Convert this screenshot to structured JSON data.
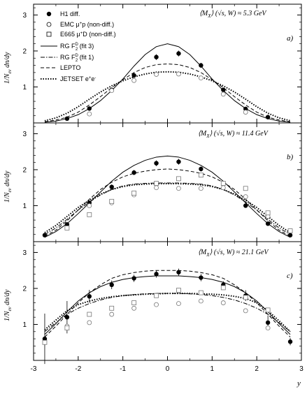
{
  "chart_data": [
    {
      "type": "scatter",
      "panel_label": "a)",
      "energy_label": "⟨M",
      "energy_sub": "X",
      "energy_tail": "⟩ (√s, W) ≈ 5.3 GeV",
      "ylabel": "1/N",
      "ylabel_sub": "ev",
      "ylabel_tail": " dn/dy",
      "xlim": [
        -3,
        3
      ],
      "ylim": [
        0,
        3.3
      ],
      "yticks": [
        1,
        2,
        3
      ],
      "series": [
        {
          "name": "H1 diff.",
          "marker": "filled-circle",
          "x": [
            -2.25,
            -1.75,
            -1.25,
            -0.75,
            -0.25,
            0.25,
            0.75,
            1.25,
            1.75,
            2.25
          ],
          "y": [
            0.12,
            0.4,
            0.92,
            1.32,
            1.83,
            1.93,
            1.6,
            0.92,
            0.39,
            0.16
          ],
          "err": [
            0.03,
            0.05,
            0.06,
            0.07,
            0.08,
            0.08,
            0.07,
            0.06,
            0.05,
            0.03
          ]
        },
        {
          "name": "EMC μ+p (non-diff.)",
          "marker": "open-circle",
          "x": [
            -1.75,
            -1.25,
            -0.75,
            -0.25,
            0.25,
            0.75,
            1.25,
            1.75
          ],
          "y": [
            0.25,
            0.9,
            1.18,
            1.35,
            1.36,
            1.25,
            0.8,
            0.3
          ],
          "err": [
            0,
            0,
            0,
            0,
            0,
            0,
            0,
            0
          ]
        },
        {
          "name": "RG F2D (fit 3)",
          "line": "solid",
          "x": [
            -2.75,
            -2.5,
            -2.25,
            -2.0,
            -1.75,
            -1.5,
            -1.25,
            -1.0,
            -0.75,
            -0.5,
            -0.25,
            0,
            0.25,
            0.5,
            0.75,
            1.0,
            1.25,
            1.5,
            1.75,
            2.0,
            2.25,
            2.5,
            2.75
          ],
          "y": [
            0.02,
            0.05,
            0.12,
            0.23,
            0.4,
            0.62,
            0.9,
            1.22,
            1.58,
            1.9,
            2.12,
            2.2,
            2.12,
            1.9,
            1.58,
            1.22,
            0.9,
            0.62,
            0.4,
            0.23,
            0.12,
            0.05,
            0.02
          ]
        },
        {
          "name": "LEPTO",
          "line": "dashed",
          "x": [
            -2.75,
            -2.5,
            -2.25,
            -2.0,
            -1.75,
            -1.5,
            -1.25,
            -1.0,
            -0.75,
            -0.5,
            -0.25,
            0,
            0.25,
            0.5,
            0.75,
            1.0,
            1.25,
            1.5,
            1.75,
            2.0,
            2.25,
            2.5,
            2.75
          ],
          "y": [
            0.03,
            0.08,
            0.16,
            0.3,
            0.5,
            0.73,
            0.98,
            1.2,
            1.4,
            1.54,
            1.62,
            1.64,
            1.62,
            1.54,
            1.4,
            1.2,
            0.98,
            0.73,
            0.5,
            0.3,
            0.16,
            0.08,
            0.03
          ]
        },
        {
          "name": "JETSET e+e-",
          "line": "dotted",
          "x": [
            -2.75,
            -2.5,
            -2.25,
            -2.0,
            -1.75,
            -1.5,
            -1.25,
            -1.0,
            -0.75,
            -0.5,
            -0.25,
            0,
            0.25,
            0.5,
            0.75,
            1.0,
            1.25,
            1.5,
            1.75,
            2.0,
            2.25,
            2.5,
            2.75
          ],
          "y": [
            0.06,
            0.14,
            0.27,
            0.45,
            0.66,
            0.86,
            1.03,
            1.17,
            1.28,
            1.36,
            1.41,
            1.42,
            1.41,
            1.36,
            1.28,
            1.17,
            1.03,
            0.86,
            0.66,
            0.45,
            0.27,
            0.14,
            0.06
          ]
        }
      ]
    },
    {
      "type": "scatter",
      "panel_label": "b)",
      "energy_label": "⟨M",
      "energy_sub": "X",
      "energy_tail": "⟩ (√s, W) ≈ 11.4 GeV",
      "ylabel": "1/N",
      "ylabel_sub": "ev",
      "ylabel_tail": " dn/dy",
      "xlim": [
        -3,
        3
      ],
      "ylim": [
        0,
        3.3
      ],
      "yticks": [
        1,
        2,
        3
      ],
      "series": [
        {
          "name": "H1 diff.",
          "marker": "filled-circle",
          "x": [
            -2.75,
            -2.25,
            -1.75,
            -1.25,
            -0.75,
            -0.25,
            0.25,
            0.75,
            1.25,
            1.75,
            2.25,
            2.75
          ],
          "y": [
            0.18,
            0.48,
            1.08,
            1.52,
            1.92,
            2.18,
            2.22,
            2.02,
            1.6,
            1.0,
            0.5,
            0.18
          ],
          "err": [
            0.04,
            0.05,
            0.06,
            0.07,
            0.07,
            0.08,
            0.08,
            0.07,
            0.07,
            0.06,
            0.05,
            0.04
          ]
        },
        {
          "name": "EMC μ+p (non-diff.)",
          "marker": "open-circle",
          "x": [
            -1.75,
            -1.25,
            -0.75,
            -0.25,
            0.25,
            0.75,
            1.25,
            1.75,
            2.25
          ],
          "y": [
            1.0,
            1.08,
            1.3,
            1.5,
            1.48,
            1.48,
            1.5,
            1.25,
            0.7
          ],
          "err": [
            0,
            0,
            0,
            0,
            0,
            0,
            0,
            0,
            0
          ]
        },
        {
          "name": "E665 μ+D (non-diff.)",
          "marker": "open-square",
          "x": [
            -2.25,
            -1.75,
            -1.25,
            -0.75,
            -0.25,
            0.25,
            0.75,
            1.25,
            1.75,
            2.25,
            2.75
          ],
          "y": [
            0.38,
            0.75,
            1.12,
            1.35,
            1.62,
            1.75,
            1.85,
            1.62,
            1.48,
            0.8,
            0.3
          ],
          "err": [
            0,
            0,
            0,
            0,
            0,
            0,
            0,
            0,
            0,
            0,
            0
          ]
        },
        {
          "name": "RG F2D (fit 3)",
          "line": "solid",
          "x": [
            -2.75,
            -2.5,
            -2.25,
            -2.0,
            -1.75,
            -1.5,
            -1.25,
            -1.0,
            -0.75,
            -0.5,
            -0.25,
            0,
            0.25,
            0.5,
            0.75,
            1.0,
            1.25,
            1.5,
            1.75,
            2.0,
            2.25,
            2.5,
            2.75
          ],
          "y": [
            0.12,
            0.28,
            0.5,
            0.78,
            1.08,
            1.38,
            1.68,
            1.93,
            2.12,
            2.26,
            2.35,
            2.38,
            2.35,
            2.26,
            2.12,
            1.93,
            1.68,
            1.38,
            1.08,
            0.78,
            0.5,
            0.28,
            0.12
          ]
        },
        {
          "name": "RG F2D (fit 1)",
          "line": "dash-dot",
          "x": [
            -2.75,
            -2.5,
            -2.25,
            -2.0,
            -1.75,
            -1.5,
            -1.25,
            -1.0,
            -0.75,
            -0.5,
            -0.25,
            0,
            0.25,
            0.5,
            0.75,
            1.0,
            1.25,
            1.5,
            1.75,
            2.0,
            2.25,
            2.5,
            2.75
          ],
          "y": [
            0.2,
            0.38,
            0.62,
            0.88,
            1.1,
            1.3,
            1.45,
            1.55,
            1.6,
            1.62,
            1.63,
            1.63,
            1.63,
            1.62,
            1.6,
            1.55,
            1.45,
            1.3,
            1.1,
            0.88,
            0.62,
            0.38,
            0.2
          ]
        },
        {
          "name": "LEPTO",
          "line": "dashed",
          "x": [
            -2.75,
            -2.5,
            -2.25,
            -2.0,
            -1.75,
            -1.5,
            -1.25,
            -1.0,
            -0.75,
            -0.5,
            -0.25,
            0,
            0.25,
            0.5,
            0.75,
            1.0,
            1.25,
            1.5,
            1.75,
            2.0,
            2.25,
            2.5,
            2.75
          ],
          "y": [
            0.15,
            0.32,
            0.58,
            0.88,
            1.18,
            1.45,
            1.65,
            1.8,
            1.9,
            1.96,
            2.0,
            2.02,
            2.0,
            1.96,
            1.9,
            1.8,
            1.65,
            1.45,
            1.18,
            0.88,
            0.58,
            0.32,
            0.15
          ]
        },
        {
          "name": "JETSET e+e-",
          "line": "dotted",
          "x": [
            -2.75,
            -2.5,
            -2.25,
            -2.0,
            -1.75,
            -1.5,
            -1.25,
            -1.0,
            -0.75,
            -0.5,
            -0.25,
            0,
            0.25,
            0.5,
            0.75,
            1.0,
            1.25,
            1.5,
            1.75,
            2.0,
            2.25,
            2.5,
            2.75
          ],
          "y": [
            0.25,
            0.45,
            0.7,
            0.95,
            1.15,
            1.32,
            1.45,
            1.53,
            1.58,
            1.6,
            1.61,
            1.61,
            1.61,
            1.6,
            1.58,
            1.53,
            1.45,
            1.32,
            1.15,
            0.95,
            0.7,
            0.45,
            0.25
          ]
        }
      ]
    },
    {
      "type": "scatter",
      "panel_label": "c)",
      "energy_label": "⟨M",
      "energy_sub": "X",
      "energy_tail": "⟩ (√s, W) ≈ 21.1 GeV",
      "ylabel": "1/N",
      "ylabel_sub": "ev",
      "ylabel_tail": " dn/dy",
      "xlabel": "y",
      "xlim": [
        -3,
        3
      ],
      "ylim": [
        0,
        3.3
      ],
      "yticks": [
        1,
        2,
        3
      ],
      "xticks": [
        -3,
        -2,
        -1,
        0,
        1,
        2,
        3
      ],
      "series": [
        {
          "name": "H1 diff.",
          "marker": "filled-circle",
          "x": [
            -2.75,
            -2.25,
            -1.75,
            -1.25,
            -0.75,
            -0.25,
            0.25,
            0.75,
            1.25,
            1.75,
            2.25,
            2.75
          ],
          "y": [
            0.6,
            1.2,
            1.78,
            2.1,
            2.28,
            2.4,
            2.45,
            2.3,
            2.1,
            1.8,
            1.05,
            0.52
          ],
          "err": [
            0.7,
            0.45,
            0.18,
            0.12,
            0.1,
            0.1,
            0.1,
            0.1,
            0.1,
            0.15,
            0.2,
            0.1
          ]
        },
        {
          "name": "EMC μ+p (non-diff.)",
          "marker": "open-circle",
          "x": [
            -2.25,
            -1.75,
            -1.25,
            -0.75,
            -0.25,
            0.25,
            0.75,
            1.25,
            1.75,
            2.25
          ],
          "y": [
            0.95,
            1.05,
            1.28,
            1.45,
            1.55,
            1.58,
            1.65,
            1.6,
            1.38,
            0.9
          ],
          "err": [
            0,
            0,
            0,
            0,
            0,
            0,
            0,
            0,
            0,
            0
          ]
        },
        {
          "name": "E665 μ+D (non-diff.)",
          "marker": "open-square",
          "x": [
            -2.75,
            -2.25,
            -1.75,
            -1.25,
            -0.75,
            -0.25,
            0.25,
            0.75,
            1.25,
            1.75,
            2.25
          ],
          "y": [
            0.5,
            0.9,
            1.28,
            1.45,
            1.6,
            1.8,
            1.95,
            1.88,
            2.02,
            1.75,
            1.4
          ],
          "err": [
            0,
            0,
            0,
            0,
            0,
            0,
            0,
            0,
            0,
            0,
            0
          ]
        },
        {
          "name": "RG F2D (fit 3)",
          "line": "solid",
          "x": [
            -2.75,
            -2.5,
            -2.25,
            -2.0,
            -1.75,
            -1.5,
            -1.25,
            -1.0,
            -0.75,
            -0.5,
            -0.25,
            0,
            0.25,
            0.5,
            0.75,
            1.0,
            1.25,
            1.5,
            1.75,
            2.0,
            2.25,
            2.5,
            2.75
          ],
          "y": [
            0.72,
            1.02,
            1.35,
            1.65,
            1.88,
            2.05,
            2.17,
            2.25,
            2.3,
            2.33,
            2.35,
            2.35,
            2.35,
            2.33,
            2.3,
            2.25,
            2.17,
            2.05,
            1.88,
            1.65,
            1.35,
            1.02,
            0.72
          ]
        },
        {
          "name": "RG F2D (fit 1)",
          "line": "dash-dot",
          "x": [
            -2.75,
            -2.5,
            -2.25,
            -2.0,
            -1.75,
            -1.5,
            -1.25,
            -1.0,
            -0.75,
            -0.5,
            -0.25,
            0,
            0.25,
            0.5,
            0.75,
            1.0,
            1.25,
            1.5,
            1.75,
            2.0,
            2.25,
            2.5,
            2.75
          ],
          "y": [
            0.8,
            1.05,
            1.28,
            1.45,
            1.58,
            1.68,
            1.75,
            1.8,
            1.83,
            1.85,
            1.86,
            1.86,
            1.86,
            1.85,
            1.83,
            1.8,
            1.75,
            1.68,
            1.58,
            1.45,
            1.28,
            1.05,
            0.8
          ]
        },
        {
          "name": "LEPTO",
          "line": "dashed",
          "x": [
            -2.75,
            -2.5,
            -2.25,
            -2.0,
            -1.75,
            -1.5,
            -1.25,
            -1.0,
            -0.75,
            -0.5,
            -0.25,
            0,
            0.25,
            0.5,
            0.75,
            1.0,
            1.25,
            1.5,
            1.75,
            2.0,
            2.25,
            2.5,
            2.75
          ],
          "y": [
            0.65,
            0.95,
            1.28,
            1.6,
            1.88,
            2.1,
            2.28,
            2.38,
            2.44,
            2.48,
            2.5,
            2.5,
            2.5,
            2.48,
            2.44,
            2.38,
            2.28,
            2.1,
            1.88,
            1.6,
            1.28,
            0.95,
            0.65
          ]
        },
        {
          "name": "JETSET e+e-",
          "line": "dotted",
          "x": [
            -2.75,
            -2.5,
            -2.25,
            -2.0,
            -1.75,
            -1.5,
            -1.25,
            -1.0,
            -0.75,
            -0.5,
            -0.25,
            0,
            0.25,
            0.5,
            0.75,
            1.0,
            1.25,
            1.5,
            1.75,
            2.0,
            2.25,
            2.5,
            2.75
          ],
          "y": [
            0.85,
            1.12,
            1.38,
            1.55,
            1.65,
            1.72,
            1.77,
            1.8,
            1.82,
            1.84,
            1.85,
            1.86,
            1.86,
            1.86,
            1.85,
            1.84,
            1.82,
            1.78,
            1.72,
            1.6,
            1.38,
            1.1,
            0.8
          ]
        }
      ]
    }
  ],
  "legend": {
    "h1": "H1 diff.",
    "emc": "EMC μ",
    "emc_sup": "+",
    "emc_tail": "p (non-diff.)",
    "e665": "E665 μ",
    "e665_sup": "+",
    "e665_tail": "D (non-diff.)",
    "fit3": "RG F",
    "fit3_sup": "D",
    "fit3_sub": "2",
    "fit3_tail": " (fit 3)",
    "fit1": "RG F",
    "fit1_sup": "D",
    "fit1_sub": "2",
    "fit1_tail": " (fit 1)",
    "lepto": "LEPTO",
    "jetset": "JETSET e",
    "jetset_sup1": "+",
    "jetset_mid": "e",
    "jetset_sup2": "-"
  }
}
